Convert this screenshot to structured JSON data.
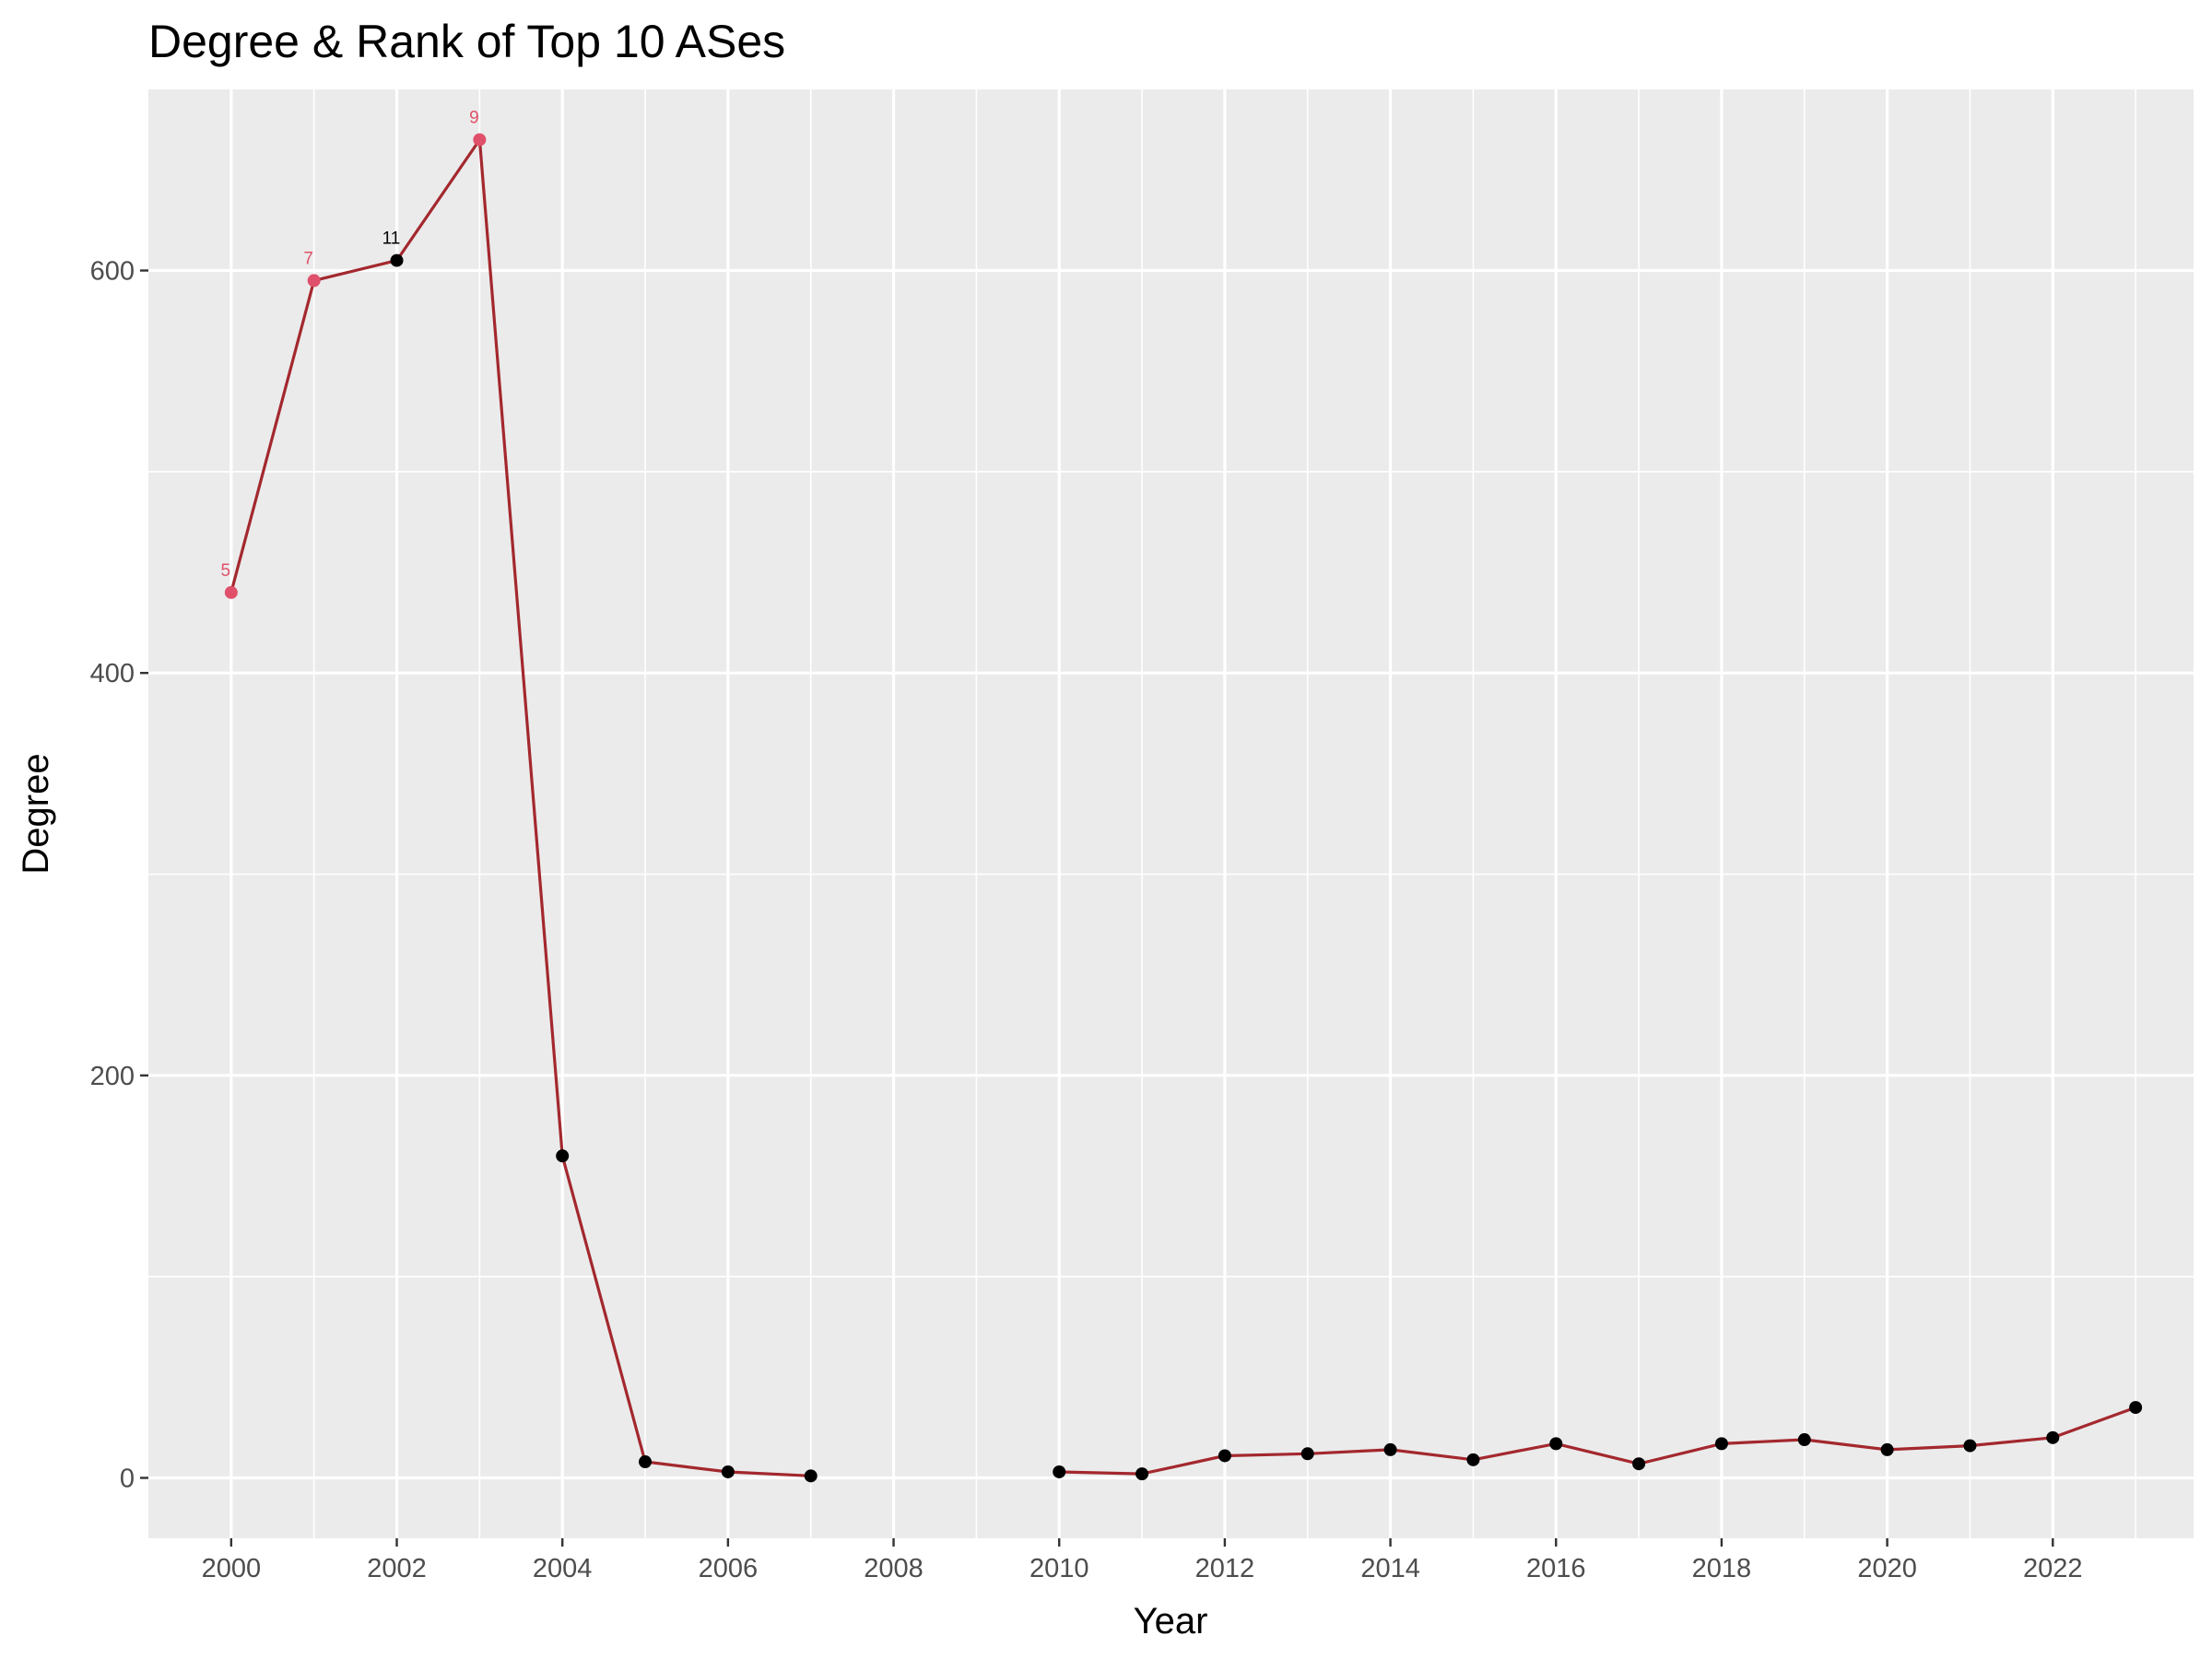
{
  "chart_data": {
    "type": "line",
    "title": "Degree & Rank of Top 10 ASes",
    "xlabel": "Year",
    "ylabel": "Degree",
    "xlim": [
      1999.0,
      2023.7
    ],
    "ylim": [
      -30,
      690
    ],
    "x_ticks": [
      2000,
      2002,
      2004,
      2006,
      2008,
      2010,
      2012,
      2014,
      2016,
      2018,
      2020,
      2022
    ],
    "y_ticks": [
      0,
      200,
      400,
      600
    ],
    "grid": true,
    "legend": "none",
    "colors": {
      "line": "#a3282e",
      "top10_point": "#e0506a",
      "other_point": "#000000",
      "panel": "#ebebeb",
      "grid": "#ffffff"
    },
    "segments": [
      [
        {
          "x": 2000,
          "y": 440,
          "label": "5",
          "top10": true
        },
        {
          "x": 2001,
          "y": 595,
          "label": "7",
          "top10": true
        },
        {
          "x": 2002,
          "y": 605,
          "label": "11",
          "top10": false
        },
        {
          "x": 2003,
          "y": 665,
          "label": "9",
          "top10": true
        },
        {
          "x": 2004,
          "y": 160,
          "label": "",
          "top10": false
        },
        {
          "x": 2005,
          "y": 8,
          "label": "",
          "top10": false
        },
        {
          "x": 2006,
          "y": 3,
          "label": "",
          "top10": false
        },
        {
          "x": 2007,
          "y": 1,
          "label": "",
          "top10": false
        }
      ],
      [
        {
          "x": 2010,
          "y": 3,
          "label": "",
          "top10": false
        },
        {
          "x": 2011,
          "y": 2,
          "label": "",
          "top10": false
        },
        {
          "x": 2012,
          "y": 11,
          "label": "",
          "top10": false
        },
        {
          "x": 2013,
          "y": 12,
          "label": "",
          "top10": false
        },
        {
          "x": 2014,
          "y": 14,
          "label": "",
          "top10": false
        },
        {
          "x": 2015,
          "y": 9,
          "label": "",
          "top10": false
        },
        {
          "x": 2016,
          "y": 17,
          "label": "",
          "top10": false
        },
        {
          "x": 2017,
          "y": 7,
          "label": "",
          "top10": false
        },
        {
          "x": 2018,
          "y": 17,
          "label": "",
          "top10": false
        },
        {
          "x": 2019,
          "y": 19,
          "label": "",
          "top10": false
        },
        {
          "x": 2020,
          "y": 14,
          "label": "",
          "top10": false
        },
        {
          "x": 2021,
          "y": 16,
          "label": "",
          "top10": false
        },
        {
          "x": 2022,
          "y": 20,
          "label": "",
          "top10": false
        },
        {
          "x": 2023,
          "y": 35,
          "label": "",
          "top10": false
        }
      ]
    ]
  }
}
